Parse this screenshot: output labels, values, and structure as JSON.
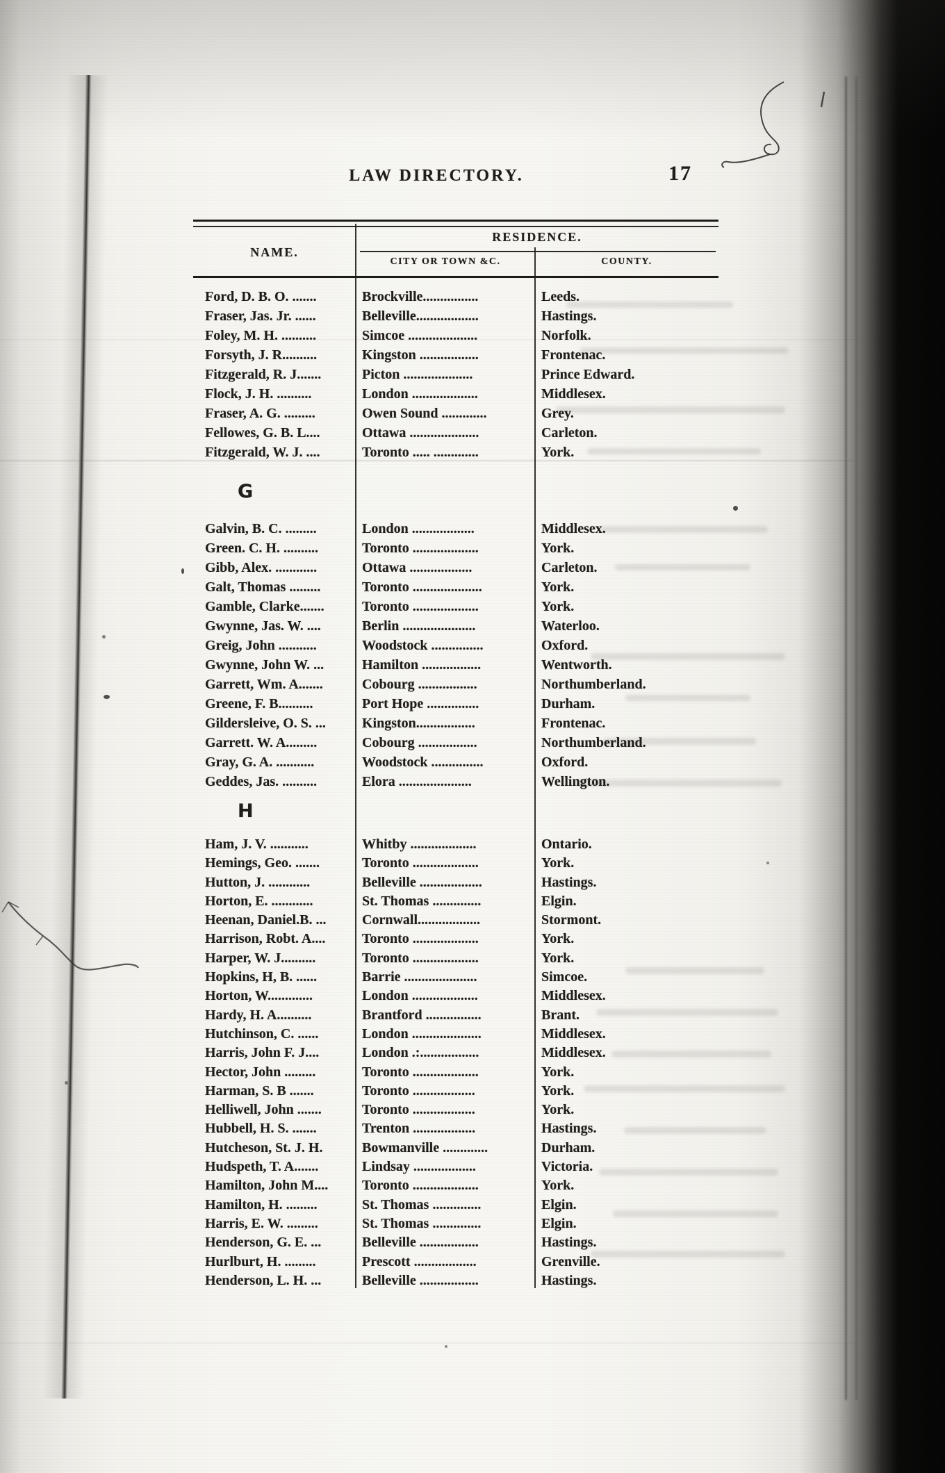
{
  "page": {
    "title": "LAW DIRECTORY.",
    "page_number": "17"
  },
  "table": {
    "residence_header": "RESIDENCE.",
    "columns": {
      "name": "NAME.",
      "city": "CITY OR TOWN &C.",
      "county": "COUNTY."
    },
    "sections": [
      {
        "letter": "",
        "rows": [
          {
            "name": "Ford, D. B. O. .......",
            "city": "Brockville................",
            "county": "Leeds."
          },
          {
            "name": "Fraser, Jas. Jr. ......",
            "city": "Belleville..................",
            "county": "Hastings."
          },
          {
            "name": "Foley, M. H. ..........",
            "city": "Simcoe ....................",
            "county": "Norfolk."
          },
          {
            "name": "Forsyth, J. R..........",
            "city": "Kingston .................",
            "county": "Frontenac."
          },
          {
            "name": "Fitzgerald, R. J.......",
            "city": "Picton ....................",
            "county": "Prince Edward."
          },
          {
            "name": "Flock, J. H. ..........",
            "city": "London ...................",
            "county": "Middlesex."
          },
          {
            "name": "Fraser, A. G. .........",
            "city": "Owen Sound .............",
            "county": "Grey."
          },
          {
            "name": "Fellowes, G. B. L....",
            "city": "Ottawa ....................",
            "county": "Carleton."
          },
          {
            "name": "Fitzgerald, W. J. ....",
            "city": "Toronto ..... .............",
            "county": "York."
          }
        ]
      },
      {
        "letter": "G",
        "rows": [
          {
            "name": "Galvin, B. C. .........",
            "city": "London ..................",
            "county": "Middlesex."
          },
          {
            "name": "Green. C. H. ..........",
            "city": "Toronto ...................",
            "county": "York."
          },
          {
            "name": "Gibb, Alex. ............",
            "city": "Ottawa ..................",
            "county": "Carleton."
          },
          {
            "name": "Galt, Thomas .........",
            "city": "Toronto ....................",
            "county": "York."
          },
          {
            "name": "Gamble, Clarke.......",
            "city": "Toronto ...................",
            "county": "York."
          },
          {
            "name": "Gwynne, Jas. W. ....",
            "city": "Berlin .....................",
            "county": "Waterloo."
          },
          {
            "name": "Greig, John ...........",
            "city": "Woodstock ...............",
            "county": "Oxford."
          },
          {
            "name": "Gwynne, John W. ...",
            "city": "Hamilton .................",
            "county": "Wentworth."
          },
          {
            "name": "Garrett, Wm. A.......",
            "city": "Cobourg .................",
            "county": "Northumberland."
          },
          {
            "name": "Greene, F. B..........",
            "city": "Port Hope ...............",
            "county": "Durham."
          },
          {
            "name": "Gildersleive, O. S. ...",
            "city": "Kingston.................",
            "county": "Frontenac."
          },
          {
            "name": "Garrett. W. A.........",
            "city": "Cobourg .................",
            "county": "Northumberland."
          },
          {
            "name": "Gray, G. A. ...........",
            "city": "Woodstock ...............",
            "county": "Oxford."
          },
          {
            "name": "Geddes, Jas. ..........",
            "city": "Elora .....................",
            "county": "Wellington."
          }
        ]
      },
      {
        "letter": "H",
        "rows": [
          {
            "name": "Ham, J. V. ...........",
            "city": "Whitby ...................",
            "county": "Ontario."
          },
          {
            "name": "Hemings, Geo. .......",
            "city": "Toronto ...................",
            "county": "York."
          },
          {
            "name": "Hutton, J. ............",
            "city": "Belleville ..................",
            "county": "Hastings."
          },
          {
            "name": "Horton, E. ............",
            "city": "St. Thomas ..............",
            "county": "Elgin."
          },
          {
            "name": "Heenan, Daniel.B. ...",
            "city": "Cornwall..................",
            "county": "Stormont."
          },
          {
            "name": "Harrison, Robt. A....",
            "city": "Toronto ...................",
            "county": "York."
          },
          {
            "name": "Harper, W. J..........",
            "city": "Toronto ...................",
            "county": "York."
          },
          {
            "name": "Hopkins, H, B. ......",
            "city": "Barrie .....................",
            "county": "Simcoe."
          },
          {
            "name": "Horton, W.............",
            "city": "London ...................",
            "county": "Middlesex."
          },
          {
            "name": "Hardy, H. A..........",
            "city": "Brantford ................",
            "county": "Brant."
          },
          {
            "name": "Hutchinson, C. ......",
            "city": "London ....................",
            "county": "Middlesex."
          },
          {
            "name": "Harris, John F. J....",
            "city": "London .:.................",
            "county": "Middlesex."
          },
          {
            "name": "Hector, John .........",
            "city": "Toronto ...................",
            "county": "York."
          },
          {
            "name": "Harman, S. B .......",
            "city": "Toronto ..................",
            "county": "York."
          },
          {
            "name": "Helliwell, John .......",
            "city": "Toronto ..................",
            "county": "York."
          },
          {
            "name": "Hubbell, H. S. .......",
            "city": "Trenton ..................",
            "county": "Hastings."
          },
          {
            "name": "Hutcheson, St. J. H.",
            "city": "Bowmanville .............",
            "county": "Durham."
          },
          {
            "name": "Hudspeth, T. A.......",
            "city": "Lindsay ..................",
            "county": "Victoria."
          },
          {
            "name": "Hamilton, John M....",
            "city": "Toronto ...................",
            "county": "York."
          },
          {
            "name": "Hamilton, H. .........",
            "city": "St. Thomas ..............",
            "county": "Elgin."
          },
          {
            "name": "Harris, E. W. .........",
            "city": "St. Thomas ..............",
            "county": "Elgin."
          },
          {
            "name": "Henderson, G. E. ...",
            "city": "Belleville .................",
            "county": "Hastings."
          },
          {
            "name": "Hurlburt, H. .........",
            "city": "Prescott ..................",
            "county": "Grenville."
          },
          {
            "name": "Henderson, L. H. ...",
            "city": "Belleville .................",
            "county": "Hastings."
          }
        ]
      }
    ]
  }
}
